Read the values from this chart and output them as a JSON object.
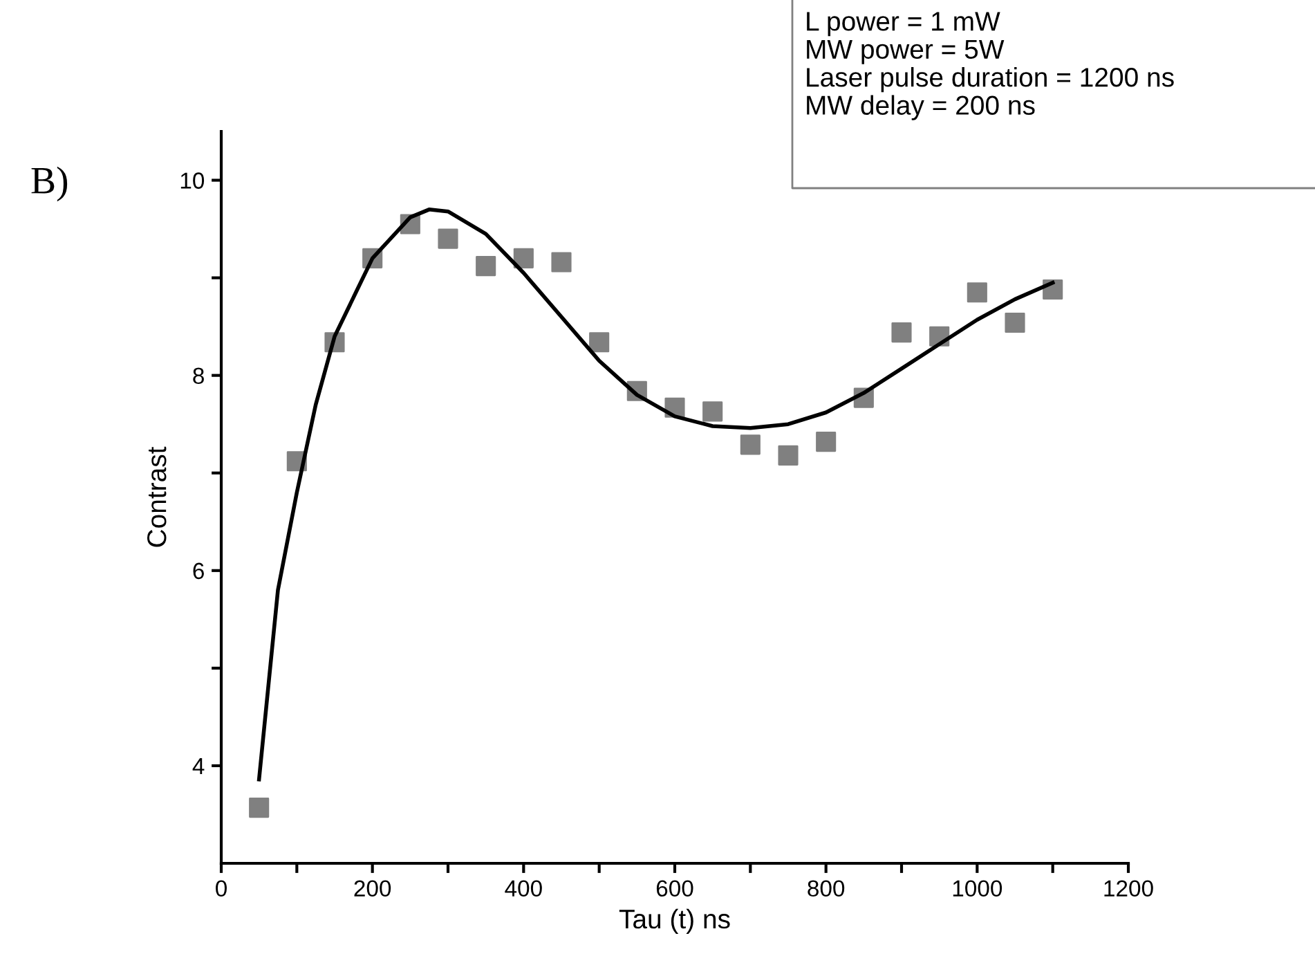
{
  "chart_data": {
    "type": "scatter",
    "xlabel": "Tau (t) ns",
    "ylabel": "Contrast",
    "annotations": [
      "B)",
      "L power = 1 mW\nMW power = 5W\nLaser pulse duration = 1200 ns\nMW delay = 200 ns"
    ],
    "xlim": [
      0,
      1200
    ],
    "ylim": [
      3,
      10.5
    ],
    "xticks": [
      0,
      {
        "value": 100,
        "label": null
      },
      200,
      {
        "value": 300,
        "label": null
      },
      400,
      {
        "value": 500,
        "label": null
      },
      600,
      {
        "value": 700,
        "label": null
      },
      800,
      {
        "value": 900,
        "label": null
      },
      1000,
      {
        "value": 1100,
        "label": null
      },
      1200
    ],
    "yticks": [
      4,
      {
        "value": 5,
        "label": null
      },
      6,
      {
        "value": 7,
        "label": null
      },
      8,
      {
        "value": 9,
        "label": null
      },
      10
    ],
    "grid": false,
    "legend": false,
    "series": [
      {
        "marker": "square",
        "color": "#808080",
        "x": [
          50,
          100,
          150,
          200,
          250,
          300,
          350,
          400,
          450,
          500,
          550,
          600,
          650,
          700,
          750,
          800,
          850,
          900,
          950,
          1000,
          1050,
          1100
        ],
        "values": [
          3.57,
          7.12,
          8.34,
          9.2,
          9.55,
          9.4,
          9.12,
          9.2,
          9.16,
          8.34,
          7.84,
          7.67,
          7.63,
          7.29,
          7.18,
          7.32,
          7.77,
          8.44,
          8.4,
          8.85,
          8.54,
          8.88
        ]
      },
      {
        "type": "line",
        "marker": "none",
        "line_style": "solid",
        "color": "#000000",
        "x": [
          50,
          75,
          100,
          125,
          150,
          200,
          250,
          275,
          300,
          350,
          400,
          450,
          500,
          550,
          600,
          650,
          700,
          750,
          800,
          850,
          900,
          950,
          1000,
          1050,
          1100
        ],
        "values": [
          3.86,
          5.8,
          6.8,
          7.7,
          8.4,
          9.2,
          9.62,
          9.7,
          9.68,
          9.45,
          9.05,
          8.6,
          8.15,
          7.8,
          7.58,
          7.48,
          7.46,
          7.5,
          7.62,
          7.82,
          8.07,
          8.32,
          8.57,
          8.78,
          8.95
        ]
      }
    ]
  }
}
